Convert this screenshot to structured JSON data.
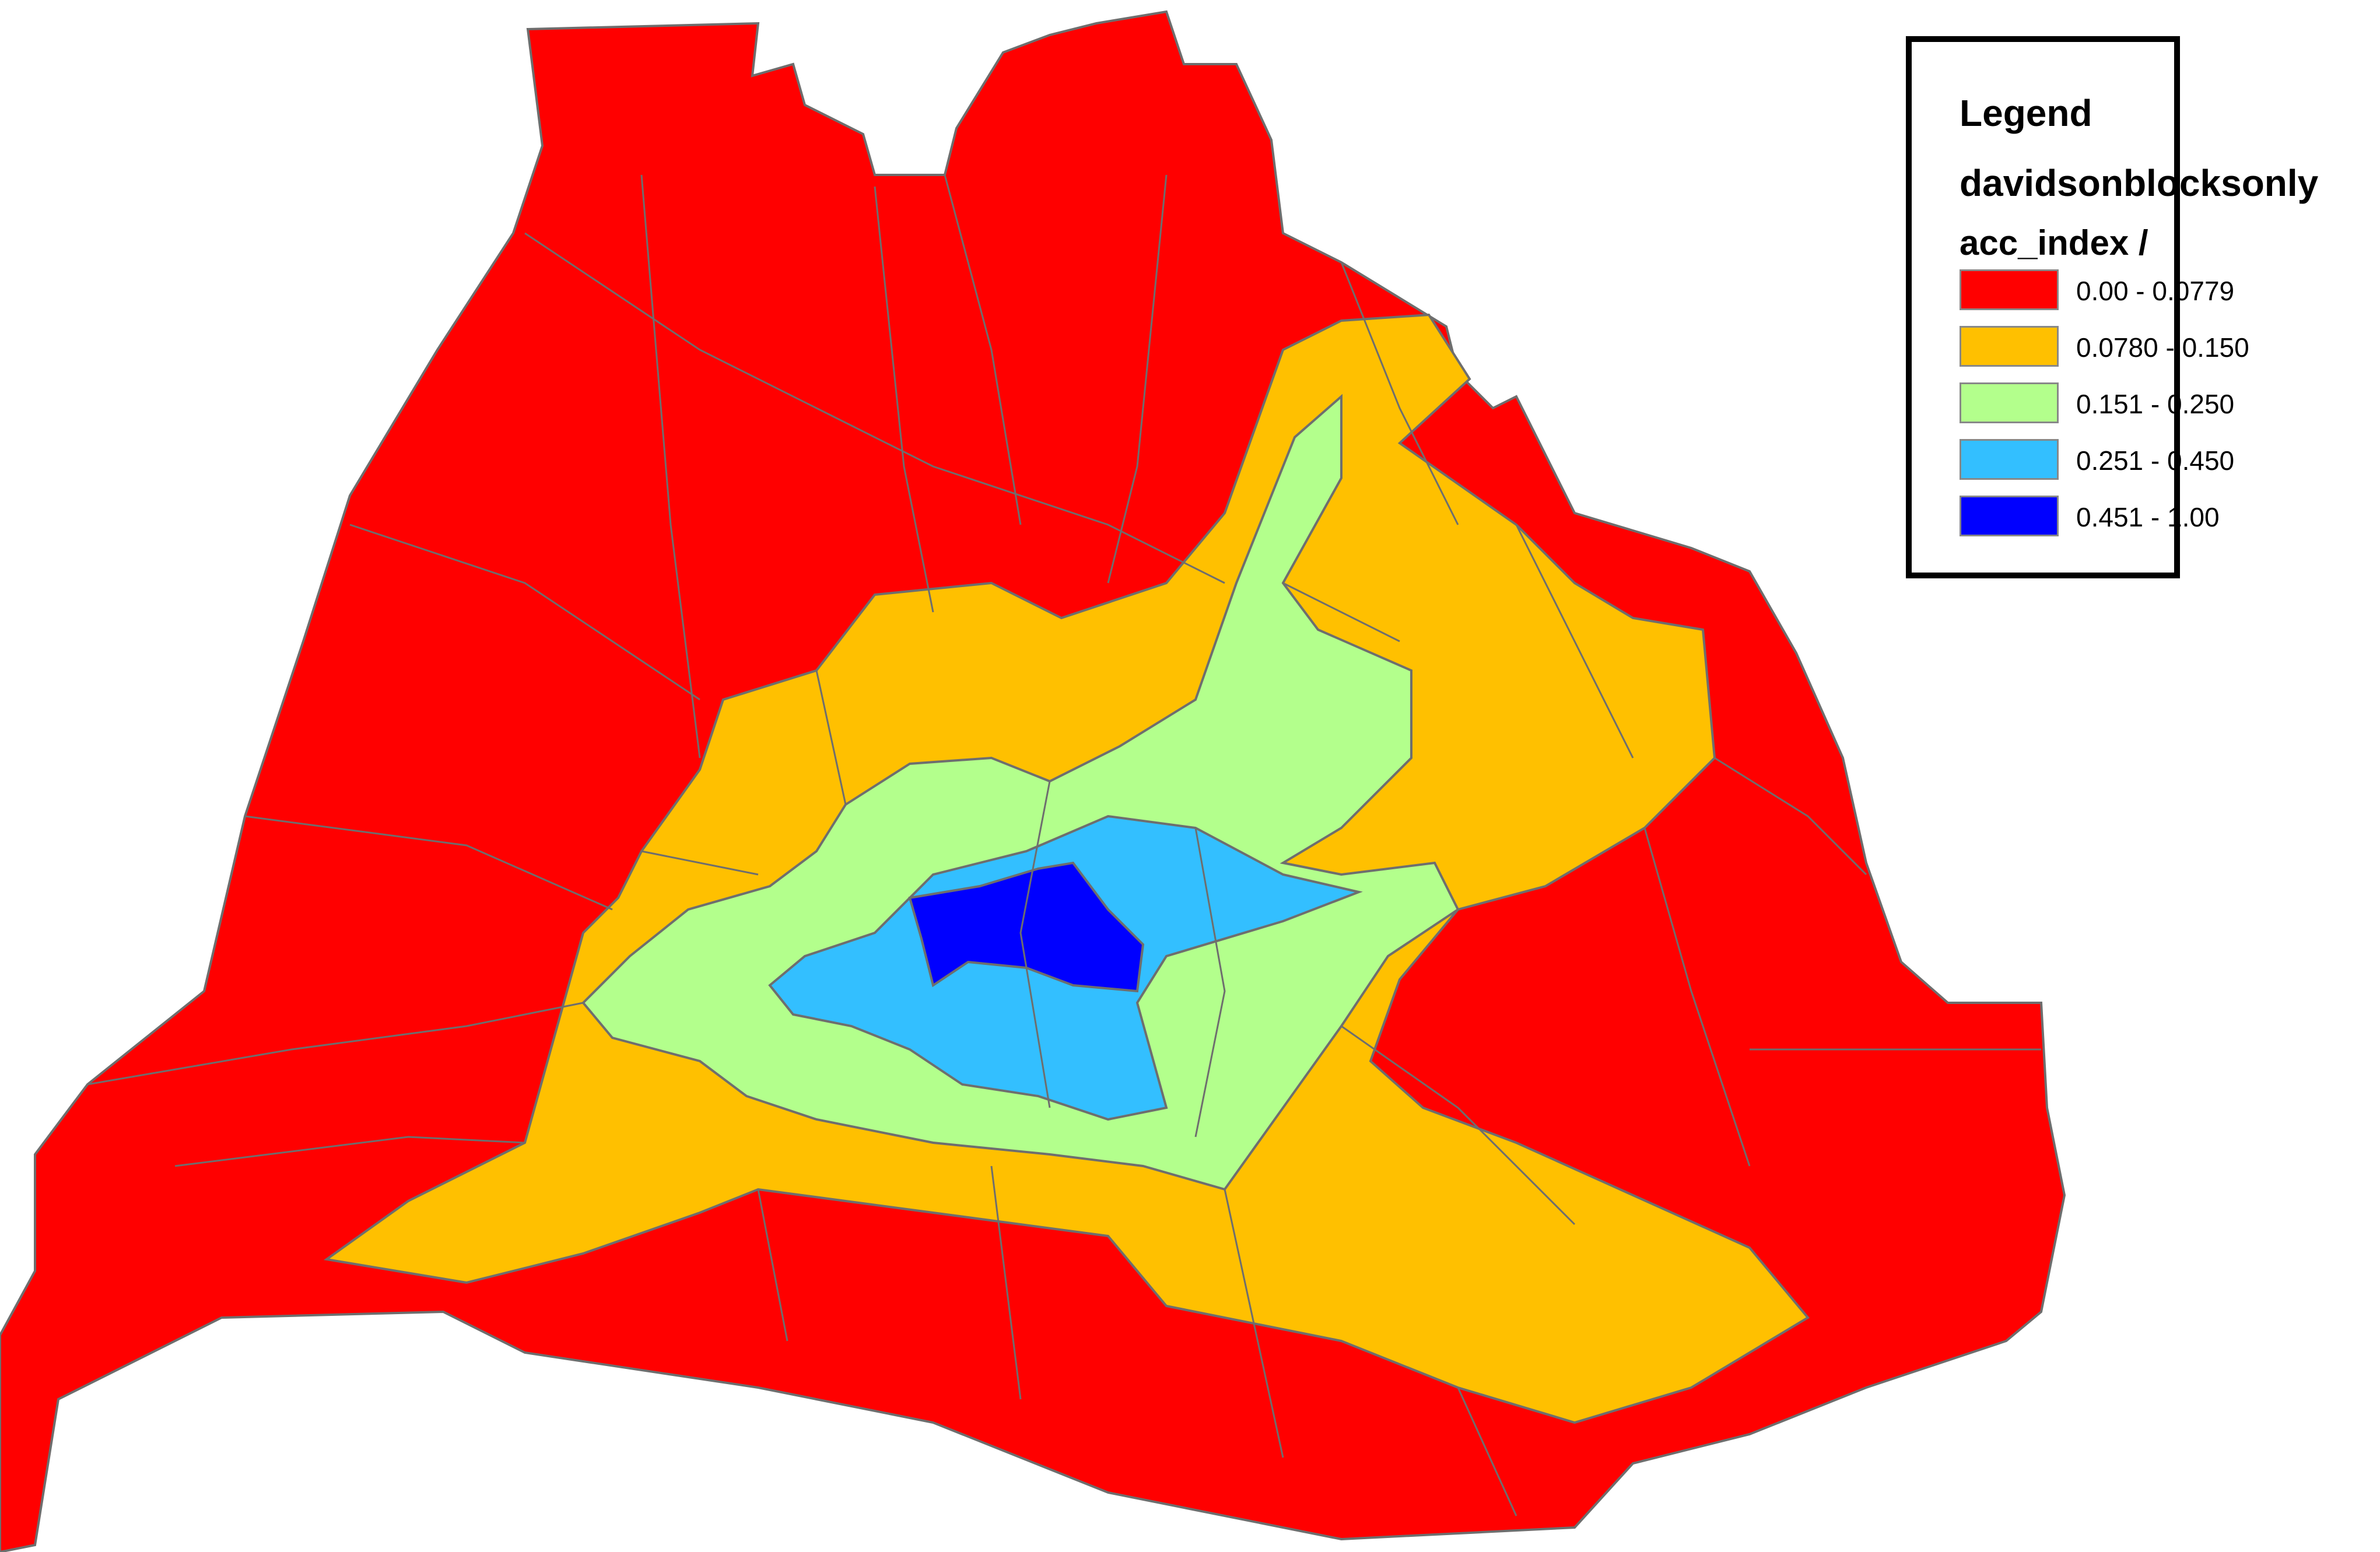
{
  "legend": {
    "title": "Legend",
    "layer": "davidsonblocksonly",
    "field": "acc_index / none",
    "classes": [
      {
        "label": "0.00 - 0.0779",
        "color": "#ff0000"
      },
      {
        "label": "0.0780 - 0.150",
        "color": "#ffc000"
      },
      {
        "label": "0.151 - 0.250",
        "color": "#b3ff8c"
      },
      {
        "label": "0.251 - 0.450",
        "color": "#33bfff"
      },
      {
        "label": "0.451 - 1.00",
        "color": "#0000ff"
      }
    ]
  },
  "map": {
    "boundary_color": "#6e6e6e",
    "region_classes": [
      "0.00 - 0.0779",
      "0.0780 - 0.150",
      "0.151 - 0.250",
      "0.251 - 0.450",
      "0.451 - 1.00"
    ]
  }
}
